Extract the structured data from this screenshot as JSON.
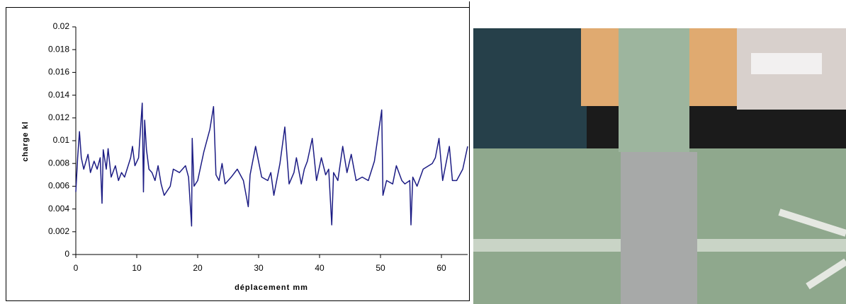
{
  "chart_data": {
    "type": "line",
    "x_label": "déplacement mm",
    "y_label": "charge kl",
    "xlim": [
      0,
      64.3
    ],
    "xticks": [
      0,
      10,
      20,
      30,
      40,
      50,
      60
    ],
    "ylim": [
      0,
      0.02
    ],
    "yticks": [
      0,
      0.002,
      0.004,
      0.006,
      0.008,
      0.01,
      0.012,
      0.014,
      0.016,
      0.018,
      0.02
    ],
    "grid": false,
    "series": [
      {
        "color": "#1c1c84",
        "x": [
          0,
          0.3,
          0.6,
          0.9,
          1.3,
          2,
          2.4,
          3,
          3.5,
          4,
          4.3,
          4.5,
          5,
          5.3,
          5.8,
          6.5,
          7,
          7.5,
          8,
          9,
          9.3,
          9.7,
          10.3,
          10.9,
          11.1,
          11.3,
          11.6,
          12,
          12.5,
          13,
          13.5,
          14,
          14.5,
          15.5,
          16,
          17,
          18,
          18.5,
          19,
          19.1,
          19.4,
          20,
          21,
          22,
          22.6,
          23,
          23.5,
          24,
          24.5,
          25.5,
          26.5,
          27.5,
          28.3,
          28.6,
          29.5,
          30.5,
          31.5,
          32,
          32.5,
          33.5,
          34.3,
          35,
          35.8,
          36.2,
          37,
          37.5,
          38,
          38.8,
          39.5,
          40.3,
          41,
          41.5,
          42,
          42.3,
          43,
          43.8,
          44.5,
          45.2,
          46,
          47,
          48,
          49,
          50.2,
          50.4,
          51,
          52,
          52.6,
          53.5,
          54,
          54.8,
          55,
          55.3,
          56,
          57,
          58.5,
          59,
          59.6,
          60.2,
          61.3,
          61.8,
          62.5,
          63.5,
          64.3
        ],
        "values": [
          0.0055,
          0.0085,
          0.0108,
          0.0085,
          0.0075,
          0.0088,
          0.0072,
          0.0082,
          0.0075,
          0.0085,
          0.0045,
          0.0092,
          0.0075,
          0.0093,
          0.0068,
          0.0078,
          0.0065,
          0.0072,
          0.0068,
          0.0085,
          0.0095,
          0.0078,
          0.0085,
          0.0133,
          0.0055,
          0.0118,
          0.0092,
          0.0075,
          0.0072,
          0.0065,
          0.0078,
          0.0062,
          0.0052,
          0.006,
          0.0075,
          0.0072,
          0.0078,
          0.0068,
          0.0025,
          0.0102,
          0.006,
          0.0065,
          0.009,
          0.011,
          0.013,
          0.007,
          0.0065,
          0.008,
          0.0062,
          0.0068,
          0.0075,
          0.0065,
          0.0042,
          0.007,
          0.0095,
          0.0068,
          0.0065,
          0.0072,
          0.0052,
          0.008,
          0.0112,
          0.0062,
          0.0072,
          0.0085,
          0.0062,
          0.0075,
          0.0082,
          0.0102,
          0.0065,
          0.0085,
          0.007,
          0.0075,
          0.0026,
          0.0072,
          0.0065,
          0.0095,
          0.0072,
          0.0088,
          0.0065,
          0.0068,
          0.0065,
          0.0082,
          0.0127,
          0.0052,
          0.0065,
          0.0062,
          0.0078,
          0.0065,
          0.0062,
          0.0065,
          0.0026,
          0.0068,
          0.006,
          0.0075,
          0.008,
          0.0085,
          0.0102,
          0.0065,
          0.0095,
          0.0065,
          0.0065,
          0.0075,
          0.0095
        ]
      }
    ]
  }
}
